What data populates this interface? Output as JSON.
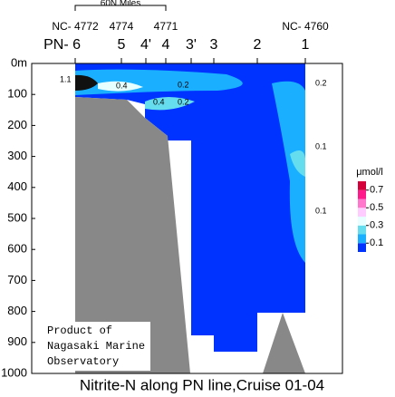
{
  "chart_data": {
    "type": "contour-section",
    "title": "Nitrite-N along PN line,Cruise 01-04",
    "distance_label": "60N.Miles",
    "stations": [
      "PN- 6",
      "5",
      "4'",
      "4",
      "3'",
      "3",
      "2",
      "1"
    ],
    "station_ids": [
      "NC- 4772",
      "4774",
      "4771",
      "NC- 4760"
    ],
    "ylim": [
      0,
      1000
    ],
    "yticks": [
      {
        "value": 0,
        "label": "0m"
      },
      100,
      200,
      300,
      400,
      500,
      600,
      700,
      800,
      900,
      1000
    ],
    "contour_labels": [
      1.1,
      0.4,
      0.2,
      0.4,
      0.2,
      0.2,
      0.1,
      0.1
    ],
    "colorbar": {
      "title": "μmol/l",
      "lim": [
        0,
        0.8
      ],
      "colors": [
        "#0033ff",
        "#1ab0ff",
        "#66ddee",
        "#e8ffff",
        "#ffccff",
        "#ff77cc",
        "#ff1a8c",
        "#d4003a"
      ],
      "ticks": [
        0.1,
        0.3,
        0.5,
        0.7
      ]
    },
    "credit": [
      "Product of",
      "Nagasaki Marine",
      "Observatory"
    ]
  }
}
